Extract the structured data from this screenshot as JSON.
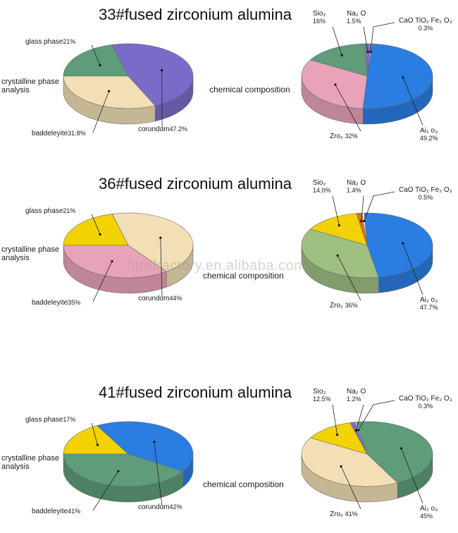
{
  "watermark": "htrefractory.en.alibaba.com",
  "labels": {
    "phase_analysis": [
      "crystalline phase",
      "analysis"
    ],
    "chemical": "chemical composition"
  },
  "chart_data": [
    {
      "type": "pie",
      "title": "33#fused zirconium alumina",
      "phase": {
        "slices": [
          {
            "name": "glass phase",
            "value": 21,
            "pct": "21%",
            "color": "#5e9c7a"
          },
          {
            "name": "corundum",
            "value": 47.2,
            "pct": "47.2%",
            "color": "#7b6bc9"
          },
          {
            "name": "baddeleyite",
            "value": 31.8,
            "pct": "31.8%",
            "color": "#f2dfb5"
          }
        ]
      },
      "chem": {
        "slices": [
          {
            "name": "Sio₂",
            "value": 16,
            "pct": "16%",
            "color": "#5e9c7a"
          },
          {
            "name": "Na₂ O",
            "value": 1.5,
            "pct": "1.5%",
            "color": "#7b6bc9"
          },
          {
            "name": "CaO TiO₂ Fe₂ O₃",
            "value": 0.3,
            "pct": "0.3%",
            "color": "#ffffff"
          },
          {
            "name": "Ai₂ o₃",
            "value": 49.2,
            "pct": "49.2%",
            "color": "#2a7de1"
          },
          {
            "name": "Zro₂",
            "value": 32,
            "pct": "32%",
            "color": "#e9a3b8"
          }
        ]
      }
    },
    {
      "type": "pie",
      "title": "36#fused zirconium alumina",
      "phase": {
        "slices": [
          {
            "name": "glass phase",
            "value": 21,
            "pct": "21%",
            "color": "#f2d200"
          },
          {
            "name": "corundum",
            "value": 44,
            "pct": "44%",
            "color": "#f2dfb5"
          },
          {
            "name": "baddeleyite",
            "value": 35,
            "pct": "35%",
            "color": "#e9a3b8"
          }
        ]
      },
      "chem": {
        "slices": [
          {
            "name": "Sio₂",
            "value": 14,
            "pct": "14.0%",
            "color": "#f2d200"
          },
          {
            "name": "Na₂ O",
            "value": 1.4,
            "pct": "1.4%",
            "color": "#d4741f"
          },
          {
            "name": "CaO TiO₂ Fe₂ O₃",
            "value": 0.5,
            "pct": "0.5%",
            "color": "#ffffff"
          },
          {
            "name": "Ai₂ o₃",
            "value": 47.7,
            "pct": "47.7%",
            "color": "#2a7de1"
          },
          {
            "name": "Zro₂",
            "value": 36,
            "pct": "36%",
            "color": "#9fbf83"
          }
        ]
      }
    },
    {
      "type": "pie",
      "title": "41#fused zirconium alumina",
      "phase": {
        "slices": [
          {
            "name": "glass phase",
            "value": 17,
            "pct": "17%",
            "color": "#f2d200"
          },
          {
            "name": "corundum",
            "value": 42,
            "pct": "42%",
            "color": "#2a7de1"
          },
          {
            "name": "baddeleyite",
            "value": 41,
            "pct": "41%",
            "color": "#5e9c7a"
          }
        ]
      },
      "chem": {
        "slices": [
          {
            "name": "Sio₂",
            "value": 12.5,
            "pct": "12.5%",
            "color": "#f2d200"
          },
          {
            "name": "Na₂ O",
            "value": 1.2,
            "pct": "1.2%",
            "color": "#7b6bc9"
          },
          {
            "name": "CaO TiO₂ Fe₂ O₃",
            "value": 0.3,
            "pct": "0.3%",
            "color": "#ffffff"
          },
          {
            "name": "Ai₂ o₃",
            "value": 45,
            "pct": "45%",
            "color": "#5e9c7a"
          },
          {
            "name": "Zro₂",
            "value": 41,
            "pct": "41%",
            "color": "#f2dfb5"
          }
        ]
      }
    }
  ]
}
